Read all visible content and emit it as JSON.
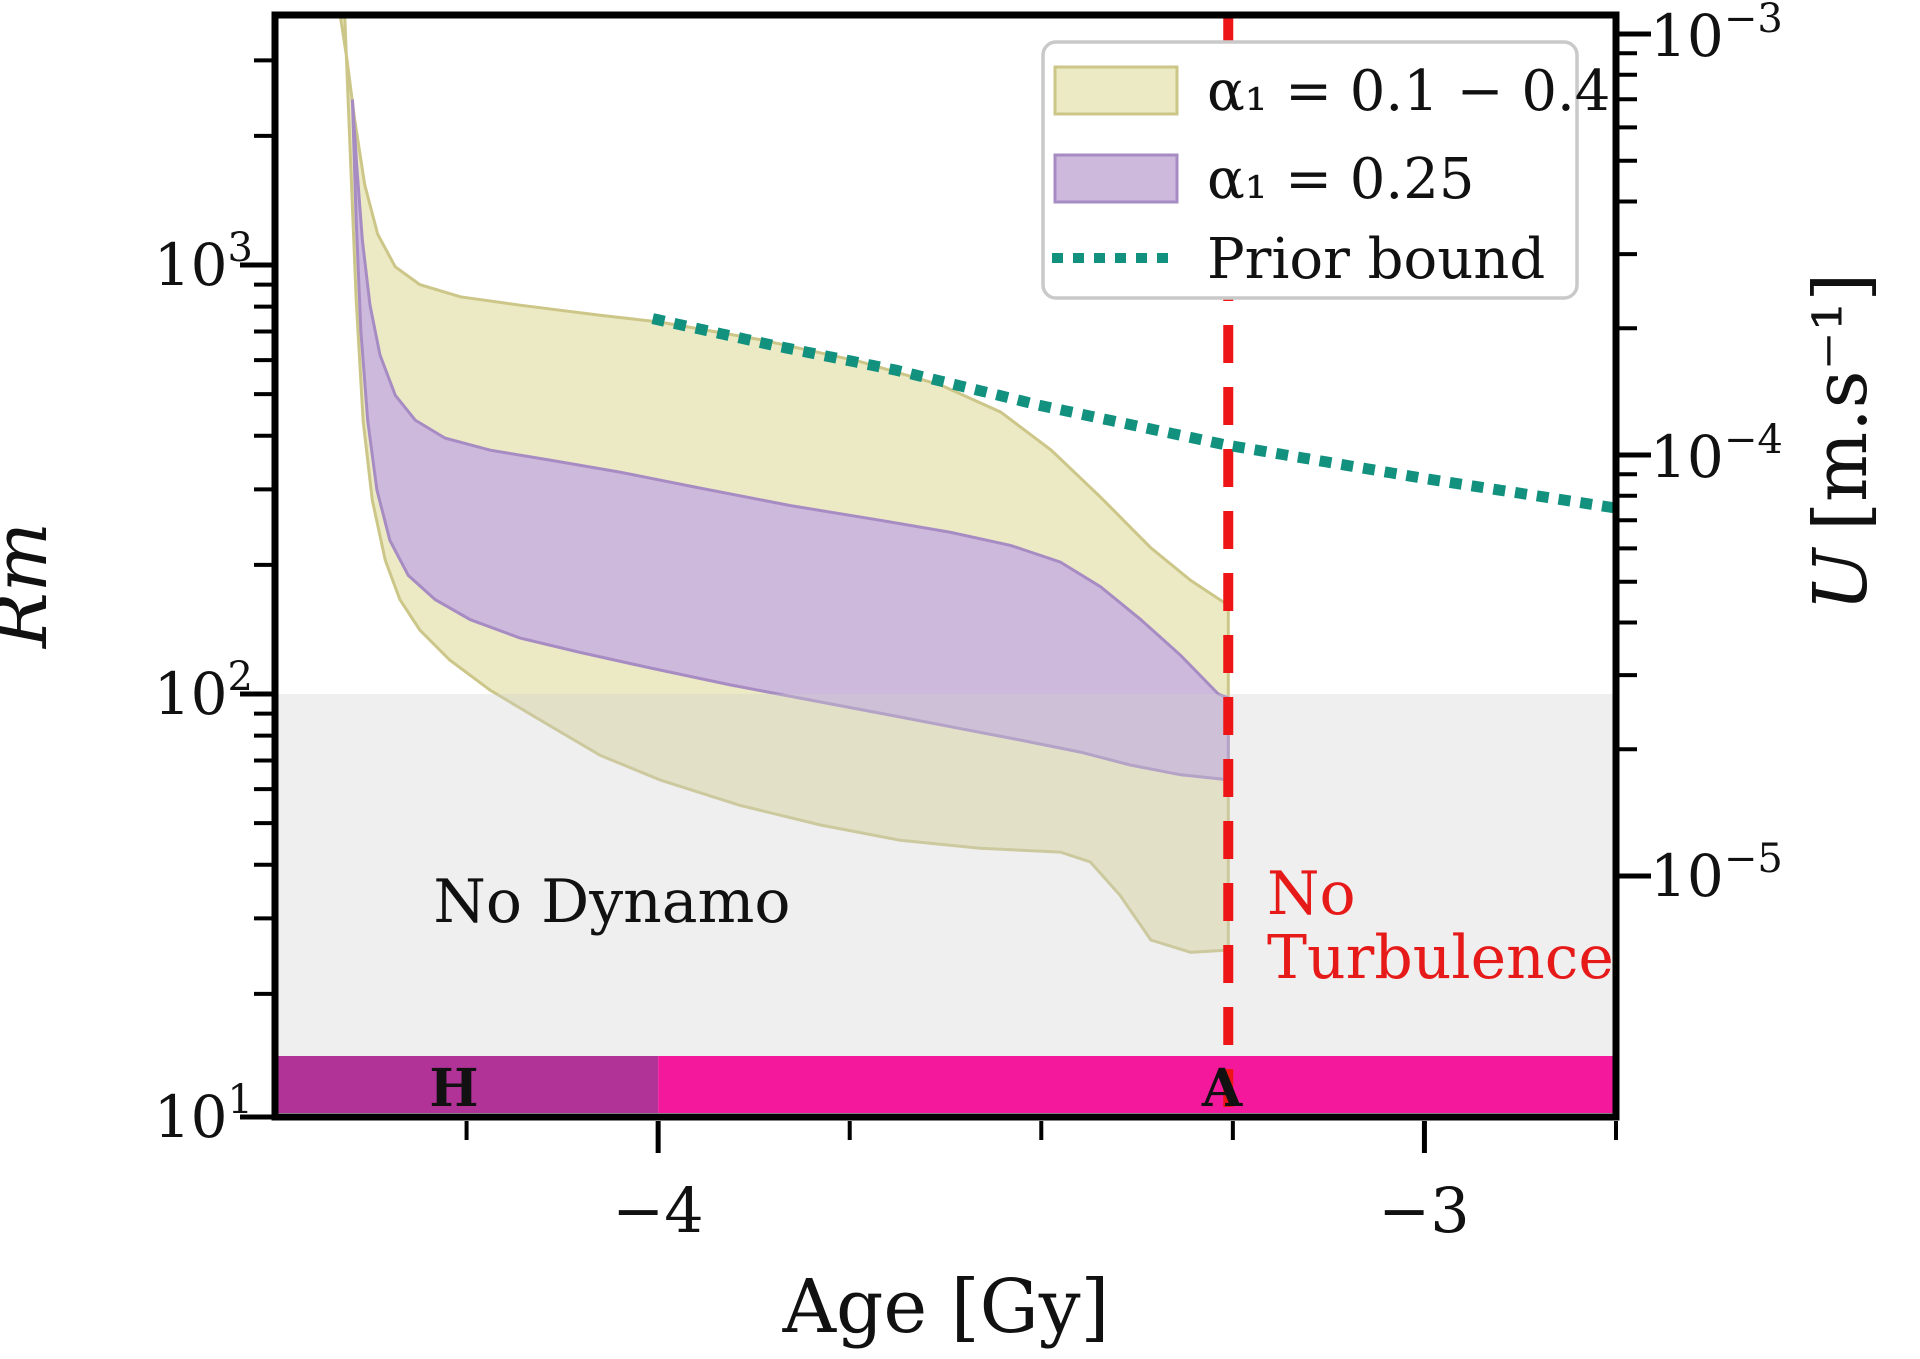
{
  "chart_data": {
    "type": "area",
    "title": "",
    "x_axis": {
      "label": "Age [Gy]",
      "scale": "linear",
      "min": -4.5,
      "max": -2.75,
      "major_ticks": [
        -4,
        -3
      ],
      "major_tick_labels": [
        "−4",
        "−3"
      ],
      "minor_tick_step": 0.25
    },
    "y_axis_left": {
      "label": "Rm",
      "scale": "log",
      "min": 10.35,
      "max": 3835,
      "ticks": [
        {
          "v": 10,
          "base": "10",
          "exp": "1"
        },
        {
          "v": 100,
          "base": "10",
          "exp": "2"
        },
        {
          "v": 1000,
          "base": "10",
          "exp": "3"
        }
      ]
    },
    "y_axis_right": {
      "label_main": "U",
      "label_unit": "[m.s⁻¹]",
      "scale": "log",
      "ticks": [
        {
          "v": 0.001,
          "base": "10",
          "exp": "−3"
        },
        {
          "v": 0.0001,
          "base": "10",
          "exp": "−4"
        },
        {
          "v": 1e-05,
          "base": "10",
          "exp": "−5"
        }
      ]
    },
    "series": [
      {
        "name": "alpha1-range-band",
        "legend_label": "α₁ = 0.1 − 0.4",
        "type": "band",
        "fill": "#ECEAC4",
        "edge": "#CCC688",
        "upper": [
          [
            -4.415,
            3835
          ],
          [
            -4.406,
            3010
          ],
          [
            -4.396,
            2180
          ],
          [
            -4.383,
            1540
          ],
          [
            -4.366,
            1180
          ],
          [
            -4.343,
            990
          ],
          [
            -4.311,
            900
          ],
          [
            -4.258,
            843
          ],
          [
            -4.18,
            806
          ],
          [
            -4.076,
            764
          ],
          [
            -3.997,
            736
          ],
          [
            -3.867,
            670
          ],
          [
            -3.736,
            595
          ],
          [
            -3.631,
            525
          ],
          [
            -3.553,
            454
          ],
          [
            -3.487,
            370
          ],
          [
            -3.423,
            288
          ],
          [
            -3.357,
            219
          ],
          [
            -3.305,
            184
          ],
          [
            -3.256,
            161
          ]
        ],
        "lower": [
          [
            -4.409,
            3835
          ],
          [
            -4.402,
            1860
          ],
          [
            -4.394,
            829
          ],
          [
            -4.385,
            434
          ],
          [
            -4.373,
            283
          ],
          [
            -4.356,
            205
          ],
          [
            -4.337,
            166
          ],
          [
            -4.311,
            141
          ],
          [
            -4.272,
            120
          ],
          [
            -4.219,
            102
          ],
          [
            -4.154,
            87
          ],
          [
            -4.076,
            72
          ],
          [
            -3.997,
            63
          ],
          [
            -3.893,
            55
          ],
          [
            -3.788,
            49.5
          ],
          [
            -3.684,
            45.6
          ],
          [
            -3.58,
            43.7
          ],
          [
            -3.475,
            42.8
          ],
          [
            -3.436,
            40.6
          ],
          [
            -3.397,
            33.9
          ],
          [
            -3.357,
            26.7
          ],
          [
            -3.305,
            25
          ],
          [
            -3.256,
            25.3
          ]
        ]
      },
      {
        "name": "alpha1-025-band",
        "legend_label": "α₁ = 0.25",
        "type": "band",
        "fill": "#CDB9DC",
        "edge": "#A78CC3",
        "upper": [
          [
            -4.399,
            2430
          ],
          [
            -4.393,
            1670
          ],
          [
            -4.386,
            1140
          ],
          [
            -4.376,
            806
          ],
          [
            -4.363,
            617
          ],
          [
            -4.343,
            497
          ],
          [
            -4.317,
            435
          ],
          [
            -4.278,
            395
          ],
          [
            -4.219,
            370
          ],
          [
            -4.141,
            351
          ],
          [
            -4.05,
            329
          ],
          [
            -3.945,
            302
          ],
          [
            -3.828,
            275
          ],
          [
            -3.71,
            254
          ],
          [
            -3.618,
            238
          ],
          [
            -3.54,
            222
          ],
          [
            -3.475,
            203
          ],
          [
            -3.423,
            178
          ],
          [
            -3.37,
            149
          ],
          [
            -3.318,
            123
          ],
          [
            -3.269,
            100
          ],
          [
            -3.256,
            98
          ]
        ],
        "lower": [
          [
            -4.399,
            2430
          ],
          [
            -4.394,
            1270
          ],
          [
            -4.388,
            705
          ],
          [
            -4.379,
            434
          ],
          [
            -4.367,
            299
          ],
          [
            -4.35,
            228
          ],
          [
            -4.326,
            189
          ],
          [
            -4.291,
            166
          ],
          [
            -4.245,
            149
          ],
          [
            -4.18,
            135
          ],
          [
            -4.102,
            125
          ],
          [
            -4.01,
            115
          ],
          [
            -3.906,
            105
          ],
          [
            -3.801,
            96.8
          ],
          [
            -3.697,
            89.3
          ],
          [
            -3.605,
            83
          ],
          [
            -3.527,
            78.1
          ],
          [
            -3.449,
            73.2
          ],
          [
            -3.384,
            68.3
          ],
          [
            -3.318,
            64.8
          ],
          [
            -3.256,
            63.1
          ]
        ]
      },
      {
        "name": "prior-bound-line",
        "legend_label": "Prior bound",
        "type": "dotted_line",
        "color": "#12917F",
        "points": [
          [
            -4.0,
            745
          ],
          [
            -3.85,
            650
          ],
          [
            -3.69,
            569
          ],
          [
            -3.5,
            470
          ],
          [
            -3.26,
            381
          ],
          [
            -3.0,
            318
          ],
          [
            -2.76,
            273
          ]
        ]
      }
    ],
    "annotations": {
      "no_dynamo": {
        "text": "No Dynamo",
        "age": -4.06,
        "rm": 33,
        "color": "#111111"
      },
      "no_dynamo_region": {
        "rm_below": 100,
        "fill_rgba": "rgba(205,205,205,0.33)"
      },
      "no_turbulence": {
        "line1": "No",
        "line2": "Turbulence",
        "age": -3.256,
        "color": "#E71A1A"
      },
      "no_turbulence_line": {
        "age": -3.256,
        "color": "#ED1515",
        "style": "dashed"
      },
      "eon_bars": [
        {
          "label": "H",
          "from": -4.5,
          "to": -4.0,
          "color": "#B23398"
        },
        {
          "label": "A",
          "from": -4.0,
          "to": -2.75,
          "color": "#F4199C"
        }
      ]
    },
    "legend_position": "upper right",
    "grid": false
  }
}
